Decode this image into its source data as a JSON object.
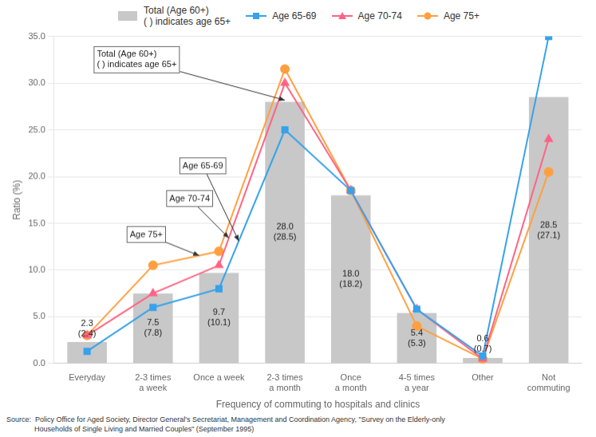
{
  "chart_data": {
    "type": "bar",
    "xlabel": "Frequency of commuting to hospitals and clinics",
    "ylabel": "Ratio (%)",
    "categories": [
      "Everyday",
      "2-3 times\na week",
      "Once a week",
      "2-3 times\na month",
      "Once\na month",
      "4-5 times\na year",
      "Other",
      "Not\ncommuting"
    ],
    "series": [
      {
        "name": "Total (Age 60+)\n( ) indicates age 65+",
        "type": "bar",
        "color": "#c8c8c8",
        "values": [
          2.3,
          7.5,
          9.7,
          28.0,
          18.0,
          5.4,
          0.6,
          28.5
        ],
        "value_labels": [
          "2.3\n(2.4)",
          "7.5\n(7.8)",
          "9.7\n(10.1)",
          "28.0\n(28.5)",
          "18.0\n(18.2)",
          "5.4\n(5.3)",
          "0.6\n(0.7)",
          "28.5\n(27.1)"
        ],
        "data_labels": true
      },
      {
        "name": "Age 65-69",
        "type": "line",
        "color": "#36a2eb",
        "marker": "square",
        "values": [
          1.3,
          6.0,
          8.0,
          25.0,
          18.5,
          5.8,
          0.8,
          35.0
        ]
      },
      {
        "name": "Age 70-74",
        "type": "line",
        "color": "#ff6384",
        "marker": "triangle",
        "values": [
          3.0,
          7.5,
          10.5,
          30.0,
          18.5,
          5.8,
          0.5,
          24.0
        ]
      },
      {
        "name": "Age 75+",
        "type": "line",
        "color": "#ff9f40",
        "marker": "circle",
        "values": [
          3.0,
          10.5,
          12.0,
          31.5,
          18.5,
          4.0,
          0.5,
          20.5
        ]
      }
    ],
    "ylim": [
      0,
      35.0
    ],
    "yticks": [
      {
        "value": 0.0,
        "label": "0.0"
      },
      {
        "value": 5.0,
        "label": "5.0"
      },
      {
        "value": 10.0,
        "label": "10.0"
      },
      {
        "value": 15.0,
        "label": "15.0"
      },
      {
        "value": 20.0,
        "label": "20.0"
      },
      {
        "value": 25.0,
        "label": "25.0"
      },
      {
        "value": 30.0,
        "label": "30.0"
      },
      {
        "value": 35.0,
        "label": "35.0"
      }
    ],
    "grid": true,
    "legend": "top",
    "annotations": [
      "Total (Age 60+)\n( ) indicates age 65+",
      "Age 65-69",
      "Age 70-74",
      "Age 75+"
    ],
    "source": "Source:  Policy Office for Aged Society, Director General's Secretariat, Management and Coordination Agency, \"Survey on the Elderly-only\n              Households of Single Living and Married Couples\" (September 1995)"
  }
}
